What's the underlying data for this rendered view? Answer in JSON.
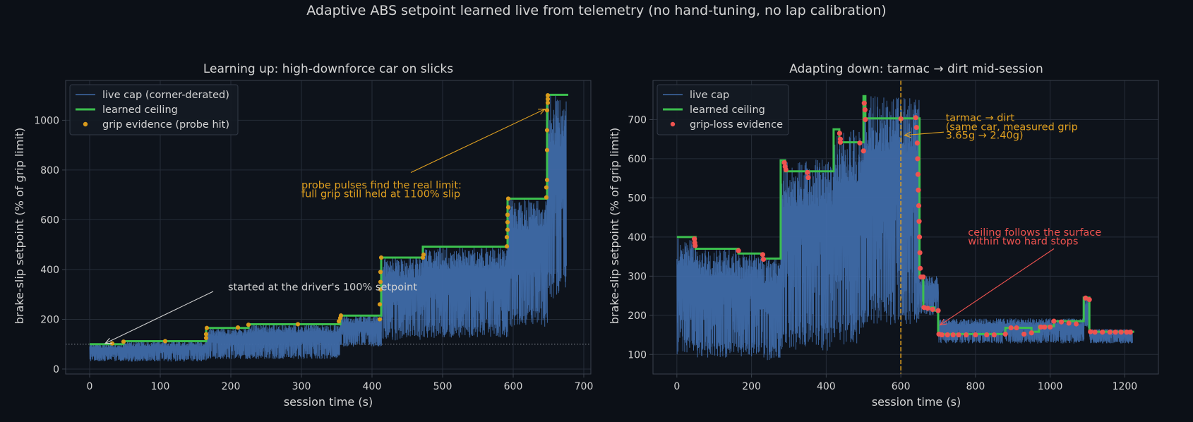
{
  "suptitle": "Adaptive ABS setpoint learned live from telemetry (no hand-tuning, no lap calibration)",
  "colors": {
    "background": "#0c1017",
    "axes_background": "#0e131b",
    "grid": "#262d38",
    "spine": "#3a414c",
    "text": "#d4d4d4",
    "live_cap": "#3f6aa8",
    "learned_ceiling": "#3cbf4e",
    "grip_evidence": "#d89a1c",
    "grip_loss_evidence": "#ef5350",
    "annotation_orange": "#e0a020",
    "annotation_red": "#ef5350",
    "annotation_white": "#d0d0d0"
  },
  "chart_data": [
    {
      "type": "line",
      "title": "Learning up: high-downforce car on slicks",
      "xlabel": "session time (s)",
      "ylabel": "brake-slip setpoint (% of grip limit)",
      "xlim": [
        -34,
        710
      ],
      "ylim": [
        -20,
        1160
      ],
      "xticks": [
        0,
        100,
        200,
        300,
        400,
        500,
        600,
        700
      ],
      "yticks": [
        0,
        200,
        400,
        600,
        800,
        1000
      ],
      "grid": true,
      "legend": "top-left",
      "baseline": 100,
      "series": [
        {
          "name": "live cap (corner-derated)",
          "kind": "trace",
          "segments": [
            {
              "x0": 0,
              "x1": 48,
              "low": 30,
              "high": 103
            },
            {
              "x0": 48,
              "x1": 165,
              "low": 30,
              "high": 112
            },
            {
              "x0": 165,
              "x1": 225,
              "low": 40,
              "high": 165
            },
            {
              "x0": 225,
              "x1": 355,
              "low": 40,
              "high": 180
            },
            {
              "x0": 355,
              "x1": 413,
              "low": 90,
              "high": 215
            },
            {
              "x0": 413,
              "x1": 472,
              "low": 115,
              "high": 448
            },
            {
              "x0": 472,
              "x1": 592,
              "low": 125,
              "high": 492
            },
            {
              "x0": 592,
              "x1": 648,
              "low": 170,
              "high": 685
            },
            {
              "x0": 648,
              "x1": 675,
              "low": 280,
              "high": 1100
            }
          ]
        },
        {
          "name": "learned ceiling",
          "kind": "step",
          "points": [
            [
              0,
              100
            ],
            [
              48,
              100
            ],
            [
              48,
              112
            ],
            [
              165,
              112
            ],
            [
              165,
              165
            ],
            [
              225,
              165
            ],
            [
              225,
              180
            ],
            [
              355,
              180
            ],
            [
              355,
              215
            ],
            [
              413,
              215
            ],
            [
              413,
              448
            ],
            [
              472,
              448
            ],
            [
              472,
              492
            ],
            [
              592,
              492
            ],
            [
              592,
              685
            ],
            [
              648,
              685
            ],
            [
              648,
              1102
            ],
            [
              678,
              1102
            ]
          ]
        },
        {
          "name": "grip evidence (probe hit)",
          "kind": "points",
          "points": [
            [
              32,
              103
            ],
            [
              48,
              110
            ],
            [
              107,
              112
            ],
            [
              165,
              125
            ],
            [
              165,
              140
            ],
            [
              166,
              165
            ],
            [
              210,
              167
            ],
            [
              225,
              178
            ],
            [
              295,
              180
            ],
            [
              353,
              192
            ],
            [
              355,
              205
            ],
            [
              356,
              215
            ],
            [
              411,
              200
            ],
            [
              411,
              260
            ],
            [
              412,
              320
            ],
            [
              412,
              350
            ],
            [
              412,
              390
            ],
            [
              413,
              448
            ],
            [
              472,
              448
            ],
            [
              473,
              460
            ],
            [
              591,
              493
            ],
            [
              591,
              530
            ],
            [
              592,
              560
            ],
            [
              592,
              590
            ],
            [
              592,
              620
            ],
            [
              593,
              650
            ],
            [
              593,
              685
            ],
            [
              647,
              690
            ],
            [
              647,
              730
            ],
            [
              648,
              760
            ],
            [
              648,
              880
            ],
            [
              648,
              960
            ],
            [
              648,
              1040
            ],
            [
              649,
              1070
            ],
            [
              649,
              1085
            ],
            [
              649,
              1100
            ]
          ]
        }
      ],
      "annotations": [
        {
          "text": "started at the driver's 100% setpoint",
          "target": [
            22,
            103
          ],
          "anchor": [
            330,
            330
          ]
        },
        {
          "text": "probe pulses find the real limit:",
          "target": [
            645,
            1045
          ],
          "anchor": [
            455,
            740
          ]
        },
        {
          "text": "full grip still held at 1100% slip",
          "target": null,
          "anchor": [
            455,
            705
          ]
        }
      ]
    },
    {
      "type": "line",
      "title": "Adapting down: tarmac → dirt mid-session",
      "xlabel": "session time (s)",
      "ylabel": "brake-slip setpoint (% of grip limit)",
      "xlim": [
        -64,
        1290
      ],
      "ylim": [
        50,
        800
      ],
      "xticks": [
        0,
        200,
        400,
        600,
        800,
        1000,
        1200
      ],
      "yticks": [
        100,
        200,
        300,
        400,
        500,
        600,
        700
      ],
      "grid": true,
      "legend": "top-left",
      "event_x": 600,
      "series": [
        {
          "name": "live cap",
          "kind": "trace",
          "segments": [
            {
              "x0": 0,
              "x1": 50,
              "low": 100,
              "high": 400
            },
            {
              "x0": 50,
              "x1": 165,
              "low": 90,
              "high": 370
            },
            {
              "x0": 165,
              "x1": 230,
              "low": 95,
              "high": 358
            },
            {
              "x0": 230,
              "x1": 278,
              "low": 85,
              "high": 345
            },
            {
              "x0": 278,
              "x1": 420,
              "low": 110,
              "high": 598
            },
            {
              "x0": 420,
              "x1": 500,
              "low": 125,
              "high": 676
            },
            {
              "x0": 500,
              "x1": 650,
              "low": 175,
              "high": 760
            },
            {
              "x0": 650,
              "x1": 700,
              "low": 200,
              "high": 300
            },
            {
              "x0": 700,
              "x1": 1090,
              "low": 128,
              "high": 192
            },
            {
              "x0": 1090,
              "x1": 1105,
              "low": 165,
              "high": 245
            },
            {
              "x0": 1105,
              "x1": 1220,
              "low": 128,
              "high": 165
            }
          ]
        },
        {
          "name": "learned ceiling",
          "kind": "step",
          "points": [
            [
              0,
              400
            ],
            [
              50,
              400
            ],
            [
              50,
              370
            ],
            [
              165,
              370
            ],
            [
              165,
              358
            ],
            [
              230,
              358
            ],
            [
              230,
              345
            ],
            [
              278,
              345
            ],
            [
              278,
              596
            ],
            [
              290,
              596
            ],
            [
              290,
              568
            ],
            [
              420,
              568
            ],
            [
              420,
              675
            ],
            [
              435,
              675
            ],
            [
              435,
              642
            ],
            [
              500,
              642
            ],
            [
              500,
              760
            ],
            [
              505,
              760
            ],
            [
              505,
              703
            ],
            [
              650,
              703
            ],
            [
              650,
              300
            ],
            [
              660,
              300
            ],
            [
              660,
              220
            ],
            [
              690,
              220
            ],
            [
              690,
              212
            ],
            [
              700,
              212
            ],
            [
              700,
              152
            ],
            [
              880,
              152
            ],
            [
              880,
              168
            ],
            [
              950,
              168
            ],
            [
              950,
              158
            ],
            [
              970,
              158
            ],
            [
              970,
              172
            ],
            [
              1010,
              172
            ],
            [
              1010,
              185
            ],
            [
              1090,
              185
            ],
            [
              1090,
              245
            ],
            [
              1105,
              245
            ],
            [
              1105,
              158
            ],
            [
              1225,
              158
            ]
          ]
        },
        {
          "name": "grip-loss evidence",
          "kind": "points",
          "points": [
            [
              47,
              395
            ],
            [
              48,
              385
            ],
            [
              49,
              378
            ],
            [
              165,
              365
            ],
            [
              230,
              355
            ],
            [
              232,
              343
            ],
            [
              288,
              590
            ],
            [
              290,
              580
            ],
            [
              292,
              572
            ],
            [
              350,
              565
            ],
            [
              352,
              552
            ],
            [
              436,
              665
            ],
            [
              438,
              650
            ],
            [
              438,
              642
            ],
            [
              490,
              640
            ],
            [
              500,
              620
            ],
            [
              502,
              742
            ],
            [
              504,
              725
            ],
            [
              505,
              700
            ],
            [
              600,
              702
            ],
            [
              640,
              705
            ],
            [
              642,
              680
            ],
            [
              644,
              640
            ],
            [
              645,
              600
            ],
            [
              646,
              560
            ],
            [
              647,
              520
            ],
            [
              648,
              480
            ],
            [
              649,
              440
            ],
            [
              650,
              400
            ],
            [
              651,
              360
            ],
            [
              652,
              320
            ],
            [
              654,
              298
            ],
            [
              660,
              298
            ],
            [
              662,
              220
            ],
            [
              672,
              218
            ],
            [
              685,
              215
            ],
            [
              700,
              212
            ],
            [
              702,
              152
            ],
            [
              710,
              150
            ],
            [
              725,
              150
            ],
            [
              740,
              150
            ],
            [
              755,
              150
            ],
            [
              775,
              150
            ],
            [
              800,
              150
            ],
            [
              830,
              150
            ],
            [
              850,
              150
            ],
            [
              880,
              152
            ],
            [
              895,
              168
            ],
            [
              910,
              168
            ],
            [
              930,
              152
            ],
            [
              950,
              155
            ],
            [
              975,
              170
            ],
            [
              985,
              170
            ],
            [
              1000,
              170
            ],
            [
              1010,
              185
            ],
            [
              1030,
              183
            ],
            [
              1050,
              180
            ],
            [
              1070,
              178
            ],
            [
              1095,
              244
            ],
            [
              1105,
              240
            ],
            [
              1108,
              158
            ],
            [
              1120,
              157
            ],
            [
              1140,
              157
            ],
            [
              1160,
              157
            ],
            [
              1175,
              157
            ],
            [
              1190,
              157
            ],
            [
              1205,
              157
            ],
            [
              1215,
              157
            ]
          ]
        }
      ],
      "annotations": [
        {
          "text": "tarmac → dirt",
          "target": [
            610,
            660
          ],
          "anchor": [
            720,
            705
          ]
        },
        {
          "text": "(same car, measured grip",
          "target": null,
          "anchor": [
            720,
            682
          ]
        },
        {
          "text": "3.65g → 2.40g)",
          "target": null,
          "anchor": [
            720,
            660
          ]
        },
        {
          "text": "ceiling follows the surface",
          "target": [
            705,
            175
          ],
          "anchor": [
            780,
            412
          ]
        },
        {
          "text": "within two hard stops",
          "target": null,
          "anchor": [
            780,
            390
          ]
        }
      ]
    }
  ]
}
